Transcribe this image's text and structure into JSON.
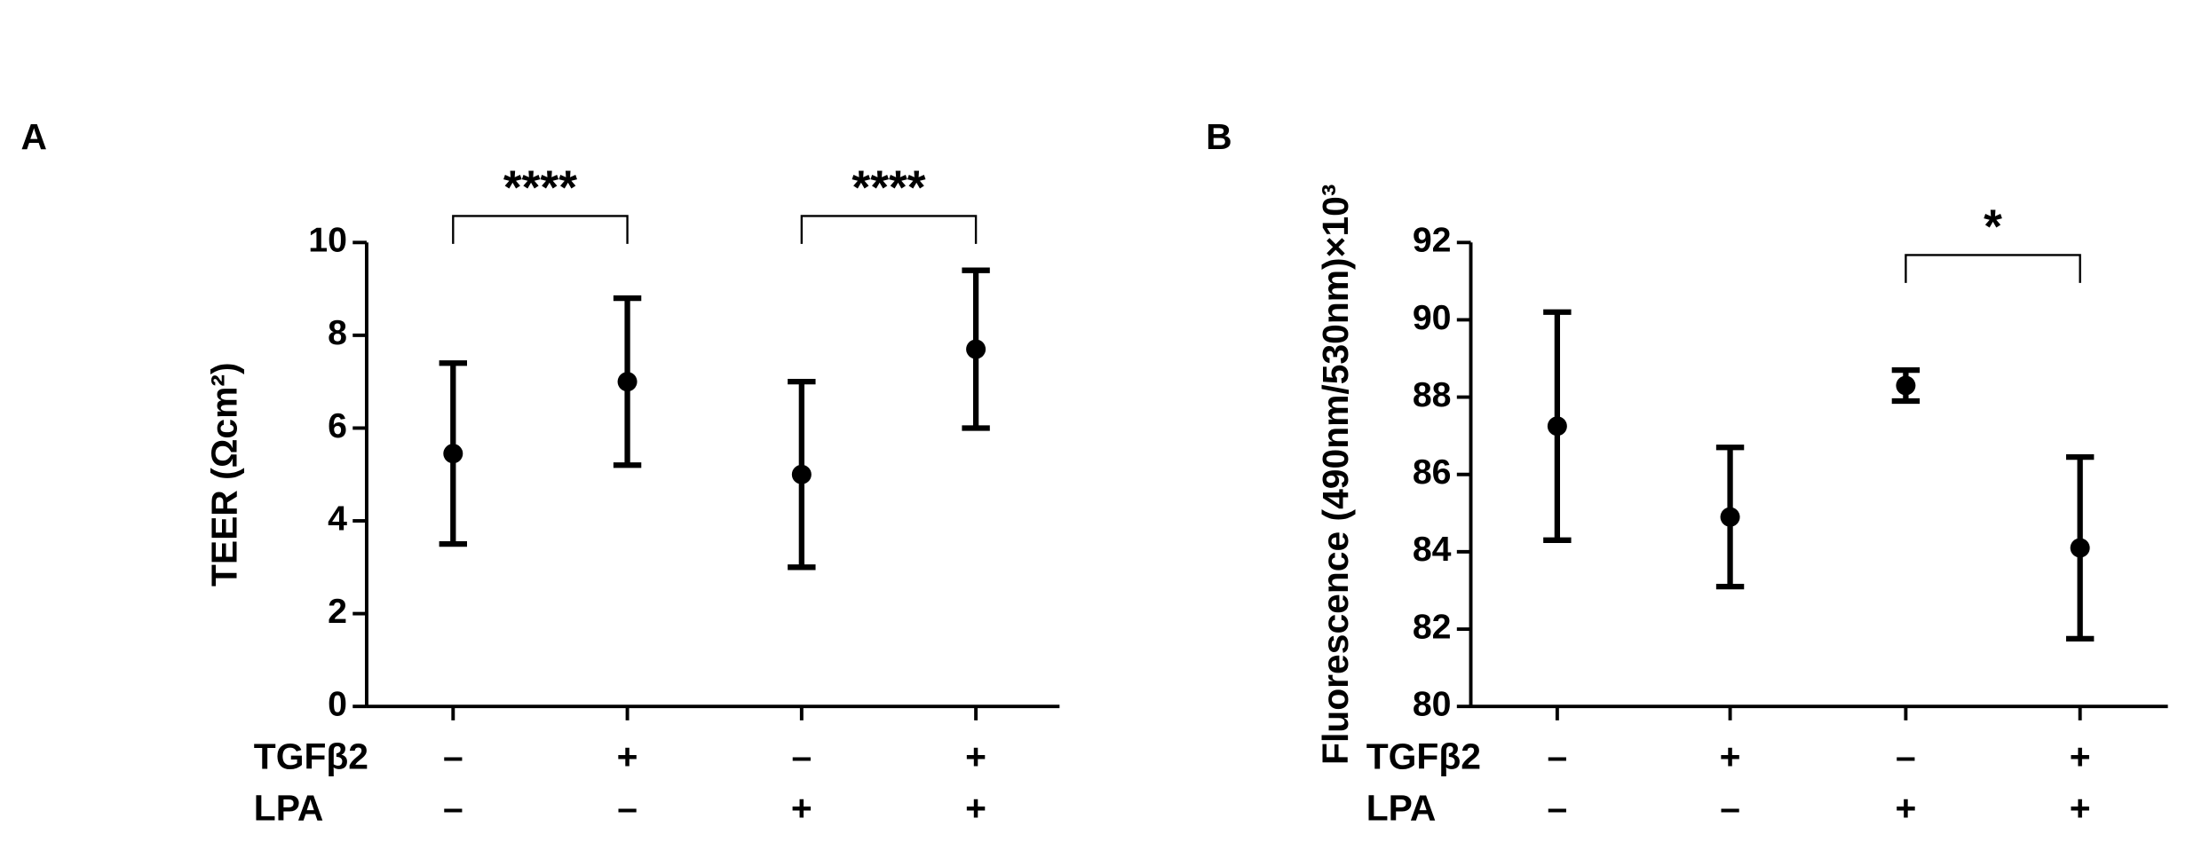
{
  "chart_data": [
    {
      "type": "errorbar",
      "panel": "A",
      "ylabel": "TEER (Ωcm²)",
      "values": [
        5.45,
        7.0,
        5.0,
        7.7
      ],
      "errors": [
        1.95,
        1.8,
        2.0,
        1.7
      ],
      "conditions": [
        {
          "name": "TGFβ2",
          "values": [
            "–",
            "+",
            "–",
            "+"
          ]
        },
        {
          "name": "LPA",
          "values": [
            "–",
            "–",
            "+",
            "+"
          ]
        }
      ],
      "ylim": [
        0,
        10
      ],
      "yticks": [
        0,
        2,
        4,
        6,
        8,
        10
      ],
      "color": "#000000",
      "annotations": [
        {
          "text": "****",
          "between": [
            0,
            1
          ]
        },
        {
          "text": "****",
          "between": [
            2,
            3
          ]
        }
      ]
    },
    {
      "type": "errorbar",
      "panel": "B",
      "ylabel": "Fluorescence (490nm/530nm)×10³",
      "values": [
        87.25,
        84.9,
        88.3,
        84.1
      ],
      "errors": [
        2.95,
        1.8,
        0.4,
        2.35
      ],
      "conditions": [
        {
          "name": "TGFβ2",
          "values": [
            "–",
            "+",
            "–",
            "+"
          ]
        },
        {
          "name": "LPA",
          "values": [
            "–",
            "–",
            "+",
            "+"
          ]
        }
      ],
      "ylim": [
        80,
        92
      ],
      "yticks": [
        80,
        82,
        84,
        86,
        88,
        90,
        92
      ],
      "color": "#000000",
      "annotations": [
        {
          "text": "*",
          "between": [
            2,
            3
          ]
        }
      ]
    }
  ]
}
